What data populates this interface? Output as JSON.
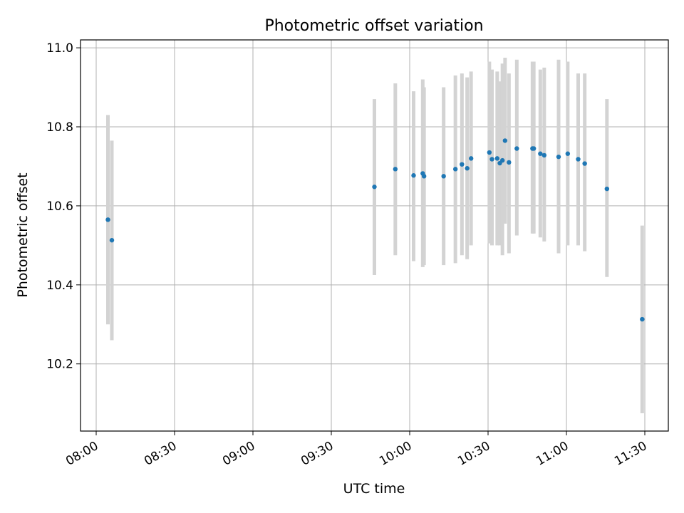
{
  "chart_data": {
    "type": "scatter",
    "title": "Photometric offset variation",
    "xlabel": "UTC time",
    "ylabel": "Photometric offset",
    "x_ticks": [
      "08:00",
      "08:30",
      "09:00",
      "09:30",
      "10:00",
      "10:30",
      "11:00",
      "11:30"
    ],
    "y_ticks": [
      "10.2",
      "10.4",
      "10.6",
      "10.8",
      "11.0"
    ],
    "xlim": [
      "07:54",
      "11:39"
    ],
    "ylim": [
      10.03,
      11.02
    ],
    "grid": true,
    "colors": {
      "point": "#1f77b4",
      "errorbar": "#d3d3d3",
      "grid": "#b0b0b0"
    },
    "points": [
      {
        "t": "08:04:30",
        "y": 10.565,
        "lo": 10.3,
        "hi": 10.83
      },
      {
        "t": "08:06:00",
        "y": 10.513,
        "lo": 10.26,
        "hi": 10.765
      },
      {
        "t": "09:46:30",
        "y": 10.648,
        "lo": 10.425,
        "hi": 10.87
      },
      {
        "t": "09:54:30",
        "y": 10.693,
        "lo": 10.475,
        "hi": 10.91
      },
      {
        "t": "10:01:30",
        "y": 10.677,
        "lo": 10.46,
        "hi": 10.89
      },
      {
        "t": "10:05:00",
        "y": 10.682,
        "lo": 10.445,
        "hi": 10.92
      },
      {
        "t": "10:05:30",
        "y": 10.675,
        "lo": 10.45,
        "hi": 10.9
      },
      {
        "t": "10:13:00",
        "y": 10.675,
        "lo": 10.45,
        "hi": 10.9
      },
      {
        "t": "10:17:30",
        "y": 10.693,
        "lo": 10.455,
        "hi": 10.93
      },
      {
        "t": "10:20:00",
        "y": 10.705,
        "lo": 10.475,
        "hi": 10.935
      },
      {
        "t": "10:22:00",
        "y": 10.695,
        "lo": 10.465,
        "hi": 10.925
      },
      {
        "t": "10:23:30",
        "y": 10.72,
        "lo": 10.5,
        "hi": 10.94
      },
      {
        "t": "10:30:30",
        "y": 10.735,
        "lo": 10.505,
        "hi": 10.965
      },
      {
        "t": "10:31:30",
        "y": 10.718,
        "lo": 10.5,
        "hi": 10.945
      },
      {
        "t": "10:33:30",
        "y": 10.72,
        "lo": 10.5,
        "hi": 10.94
      },
      {
        "t": "10:34:30",
        "y": 10.708,
        "lo": 10.5,
        "hi": 10.915
      },
      {
        "t": "10:35:30",
        "y": 10.715,
        "lo": 10.475,
        "hi": 10.96
      },
      {
        "t": "10:36:30",
        "y": 10.765,
        "lo": 10.555,
        "hi": 10.975
      },
      {
        "t": "10:38:00",
        "y": 10.71,
        "lo": 10.48,
        "hi": 10.935
      },
      {
        "t": "10:41:00",
        "y": 10.745,
        "lo": 10.525,
        "hi": 10.97
      },
      {
        "t": "10:47:00",
        "y": 10.745,
        "lo": 10.53,
        "hi": 10.965
      },
      {
        "t": "10:47:30",
        "y": 10.745,
        "lo": 10.53,
        "hi": 10.965
      },
      {
        "t": "10:50:00",
        "y": 10.732,
        "lo": 10.52,
        "hi": 10.945
      },
      {
        "t": "10:51:30",
        "y": 10.728,
        "lo": 10.51,
        "hi": 10.95
      },
      {
        "t": "10:57:00",
        "y": 10.724,
        "lo": 10.48,
        "hi": 10.97
      },
      {
        "t": "11:00:30",
        "y": 10.732,
        "lo": 10.5,
        "hi": 10.965
      },
      {
        "t": "11:04:30",
        "y": 10.718,
        "lo": 10.5,
        "hi": 10.935
      },
      {
        "t": "11:07:00",
        "y": 10.707,
        "lo": 10.485,
        "hi": 10.935
      },
      {
        "t": "11:15:30",
        "y": 10.643,
        "lo": 10.42,
        "hi": 10.87
      },
      {
        "t": "11:29:00",
        "y": 10.313,
        "lo": 10.075,
        "hi": 10.55
      }
    ]
  }
}
